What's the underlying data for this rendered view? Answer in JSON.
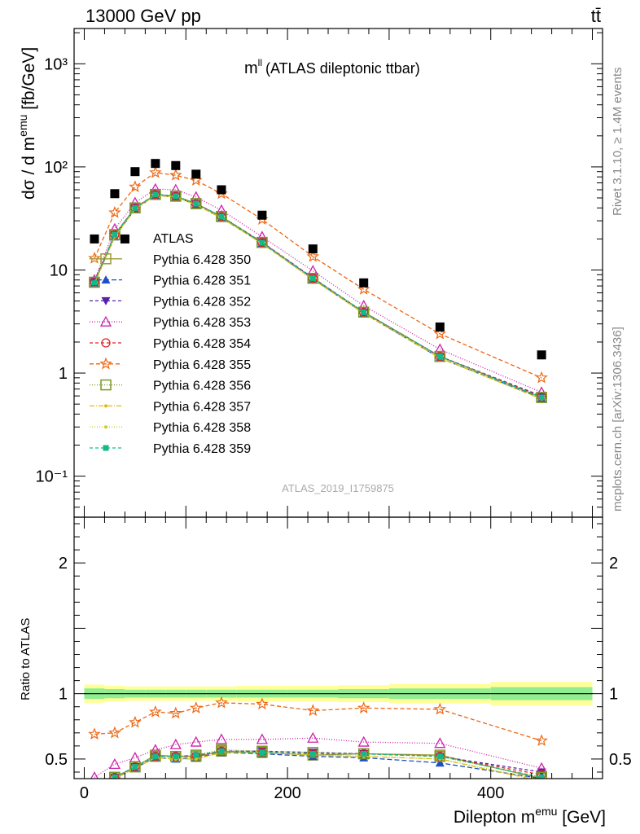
{
  "header": {
    "left": "13000 GeV pp",
    "right": "tt̄"
  },
  "plot_title": {
    "symbol": "m",
    "superscript": "ll",
    "text": "(ATLAS dileptonic ttbar)"
  },
  "watermark": "ATLAS_2019_I1759875",
  "side_labels": {
    "rivet": "Rivet 3.1.10, ≥ 1.4M events",
    "mcplots": "mcplots.cern.ch [arXiv:1306.3436]"
  },
  "colors": {
    "data": "#000000",
    "band_inner": "#90ee90",
    "band_outer": "#ffff99"
  },
  "chart_data": [
    {
      "type": "scatter",
      "panel": "main",
      "ylabel": "dσ / d m^emu [fb/GeV]",
      "yscale": "log",
      "ylim": [
        0.04,
        2200
      ],
      "xlim": [
        -10,
        510
      ],
      "ytick_labels": [
        "10⁻¹",
        "1",
        "10",
        "10²",
        "10³"
      ],
      "ytick_values": [
        0.1,
        1,
        10,
        100,
        1000
      ],
      "x": [
        10,
        30,
        50,
        70,
        90,
        110,
        135,
        175,
        225,
        275,
        350,
        450
      ],
      "data": {
        "name": "ATLAS",
        "marker": "square",
        "values": [
          20,
          55,
          20,
          90,
          108,
          103,
          85,
          60,
          34,
          16,
          7.5,
          2.8,
          1.5
        ],
        "x": [
          10,
          30,
          40,
          50,
          70,
          90,
          110,
          135,
          175,
          225,
          275,
          350,
          450
        ]
      },
      "series": [
        {
          "name": "Pythia 6.428 350",
          "color": "#9b9b2f",
          "dash": "",
          "marker": "square-open",
          "values": [
            7.6,
            22,
            40,
            54,
            52,
            44,
            33,
            18.5,
            8.3,
            3.9,
            1.45,
            0.58
          ]
        },
        {
          "name": "Pythia 6.428 351",
          "color": "#1f4fc4",
          "dash": "6,3",
          "marker": "triangle-up",
          "values": [
            7.5,
            21,
            39,
            53,
            51,
            43,
            32,
            18.2,
            8.2,
            3.8,
            1.4,
            0.57
          ]
        },
        {
          "name": "Pythia 6.428 352",
          "color": "#5522aa",
          "dash": "4,3",
          "marker": "triangle-down",
          "values": [
            7.8,
            22,
            40,
            54,
            52,
            44,
            33,
            18.6,
            8.4,
            3.9,
            1.45,
            0.6
          ]
        },
        {
          "name": "Pythia 6.428 353",
          "color": "#cc22aa",
          "dash": "1,2",
          "marker": "triangle-open",
          "values": [
            8.0,
            25,
            45,
            61,
            60,
            51,
            38,
            21,
            9.8,
            4.5,
            1.7,
            0.65
          ]
        },
        {
          "name": "Pythia 6.428 354",
          "color": "#dd2222",
          "dash": "4,3",
          "marker": "circle-open",
          "values": [
            7.7,
            22,
            40,
            54,
            52,
            44,
            33,
            18.5,
            8.3,
            3.9,
            1.45,
            0.59
          ]
        },
        {
          "name": "Pythia 6.428 355",
          "color": "#ee6611",
          "dash": "5,3",
          "marker": "star",
          "values": [
            13,
            36,
            64,
            88,
            83,
            74,
            55,
            31,
            13.5,
            6.5,
            2.4,
            0.9
          ]
        },
        {
          "name": "Pythia 6.428 356",
          "color": "#779922",
          "dash": "1,2",
          "marker": "square-open",
          "values": [
            7.6,
            22,
            40,
            54,
            52,
            44,
            33,
            18.5,
            8.3,
            3.9,
            1.45,
            0.58
          ]
        },
        {
          "name": "Pythia 6.428 357",
          "color": "#ddbb11",
          "dash": "6,2,1,2",
          "marker": "small",
          "values": [
            7.4,
            21,
            39,
            53,
            51,
            43,
            32,
            18,
            8.1,
            3.8,
            1.4,
            0.56
          ]
        },
        {
          "name": "Pythia 6.428 358",
          "color": "#cccc22",
          "dash": "1,2",
          "marker": "small",
          "values": [
            7.4,
            21,
            39,
            53,
            51,
            43,
            32,
            18,
            8.1,
            3.8,
            1.4,
            0.56
          ]
        },
        {
          "name": "Pythia 6.428 359",
          "color": "#11bb88",
          "dash": "4,3",
          "marker": "square-filled",
          "values": [
            7.6,
            22,
            40,
            54,
            52,
            44,
            33,
            18.4,
            8.3,
            3.9,
            1.45,
            0.58
          ]
        }
      ],
      "legend_title": "ATLAS",
      "legend_placement": "left-middle"
    },
    {
      "type": "line",
      "panel": "ratio",
      "ylabel": "Ratio to ATLAS",
      "xlabel": "Dilepton m^emu [GeV]",
      "ylim": [
        0.35,
        2.35
      ],
      "xlim": [
        -10,
        510
      ],
      "ytick_labels": [
        "0.5",
        "1",
        "2"
      ],
      "ytick_values": [
        0.5,
        1,
        2
      ],
      "xtick_labels": [
        "0",
        "200",
        "400"
      ],
      "xtick_values": [
        0,
        200,
        400
      ],
      "x": [
        10,
        30,
        50,
        70,
        90,
        110,
        135,
        175,
        225,
        275,
        350,
        450
      ],
      "band_edges": [
        0,
        20,
        40,
        60,
        80,
        100,
        120,
        150,
        200,
        250,
        300,
        400,
        500
      ],
      "band_inner_halfwidth": [
        0.04,
        0.035,
        0.03,
        0.03,
        0.03,
        0.03,
        0.03,
        0.03,
        0.03,
        0.035,
        0.04,
        0.05
      ],
      "band_outer_halfwidth": [
        0.07,
        0.06,
        0.055,
        0.055,
        0.055,
        0.055,
        0.055,
        0.06,
        0.06,
        0.065,
        0.075,
        0.09
      ],
      "series": [
        {
          "name": "Pythia 6.428 350",
          "values": [
            0.29,
            0.36,
            0.44,
            0.53,
            0.52,
            0.52,
            0.56,
            0.55,
            0.53,
            0.54,
            0.53,
            0.35
          ]
        },
        {
          "name": "Pythia 6.428 351",
          "values": [
            0.28,
            0.35,
            0.43,
            0.51,
            0.5,
            0.51,
            0.55,
            0.54,
            0.52,
            0.51,
            0.47,
            0.35
          ]
        },
        {
          "name": "Pythia 6.428 352",
          "values": [
            0.29,
            0.36,
            0.44,
            0.52,
            0.52,
            0.52,
            0.56,
            0.56,
            0.55,
            0.54,
            0.52,
            0.4
          ]
        },
        {
          "name": "Pythia 6.428 353",
          "values": [
            0.36,
            0.46,
            0.51,
            0.57,
            0.61,
            0.63,
            0.65,
            0.65,
            0.66,
            0.63,
            0.62,
            0.43
          ]
        },
        {
          "name": "Pythia 6.428 354",
          "values": [
            0.29,
            0.36,
            0.44,
            0.52,
            0.52,
            0.52,
            0.56,
            0.55,
            0.54,
            0.54,
            0.52,
            0.38
          ]
        },
        {
          "name": "Pythia 6.428 355",
          "values": [
            0.69,
            0.7,
            0.78,
            0.86,
            0.85,
            0.89,
            0.93,
            0.92,
            0.87,
            0.89,
            0.88,
            0.64
          ]
        },
        {
          "name": "Pythia 6.428 356",
          "values": [
            0.29,
            0.36,
            0.44,
            0.52,
            0.52,
            0.53,
            0.57,
            0.56,
            0.55,
            0.54,
            0.52,
            0.36
          ]
        },
        {
          "name": "Pythia 6.428 357",
          "values": [
            0.28,
            0.35,
            0.43,
            0.51,
            0.5,
            0.5,
            0.55,
            0.55,
            0.53,
            0.52,
            0.5,
            0.33
          ]
        },
        {
          "name": "Pythia 6.428 358",
          "values": [
            0.28,
            0.35,
            0.43,
            0.51,
            0.5,
            0.5,
            0.55,
            0.55,
            0.53,
            0.52,
            0.5,
            0.34
          ]
        },
        {
          "name": "Pythia 6.428 359",
          "values": [
            0.29,
            0.36,
            0.44,
            0.52,
            0.52,
            0.53,
            0.56,
            0.55,
            0.54,
            0.54,
            0.52,
            0.36
          ]
        }
      ]
    }
  ]
}
